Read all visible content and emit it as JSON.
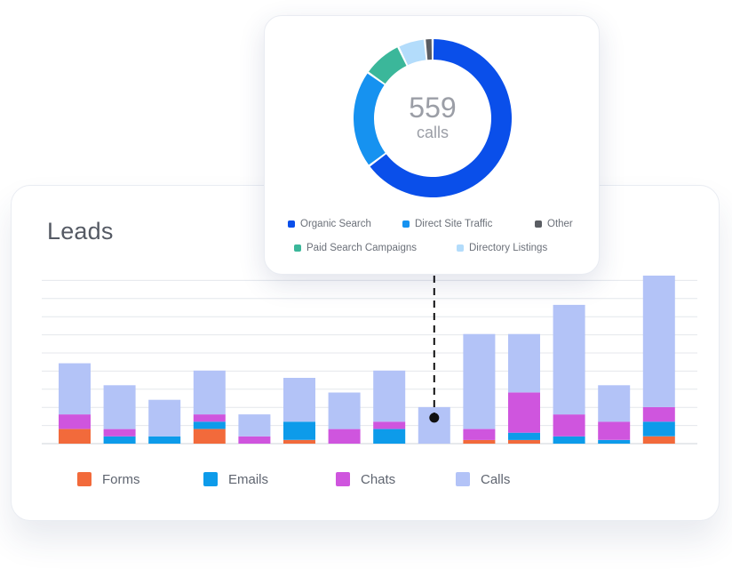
{
  "leads": {
    "title": "Leads",
    "legend": [
      {
        "label": "Forms",
        "color": "#f26a3b"
      },
      {
        "label": "Emails",
        "color": "#0d9bea"
      },
      {
        "label": "Chats",
        "color": "#cf55de"
      },
      {
        "label": "Calls",
        "color": "#b3c3f7"
      }
    ]
  },
  "donut": {
    "value": "559",
    "unit": "calls",
    "legend": [
      {
        "label": "Organic Search",
        "color": "#0a4fea"
      },
      {
        "label": "Direct Site Traffic",
        "color": "#1692f0"
      },
      {
        "label": "Other",
        "color": "#5a5d63"
      },
      {
        "label": "Paid Search Campaigns",
        "color": "#3bb79a"
      },
      {
        "label": "Directory Listings",
        "color": "#b3dcfb"
      }
    ]
  },
  "chart_data": [
    {
      "type": "bar",
      "stacked": true,
      "title": "Leads",
      "categories": [
        "",
        "",
        "",
        "",
        "",
        "",
        "",
        "",
        "",
        "",
        "",
        "",
        "",
        ""
      ],
      "series": [
        {
          "name": "Forms",
          "values": [
            4,
            0,
            0,
            4,
            0,
            1,
            0,
            0,
            0,
            1,
            1,
            0,
            0,
            2
          ]
        },
        {
          "name": "Emails",
          "values": [
            0,
            2,
            2,
            2,
            0,
            5,
            0,
            4,
            0,
            0,
            2,
            2,
            1,
            4
          ]
        },
        {
          "name": "Chats",
          "values": [
            4,
            2,
            0,
            2,
            2,
            0,
            4,
            2,
            0,
            3,
            11,
            6,
            5,
            4
          ]
        },
        {
          "name": "Calls",
          "values": [
            14,
            12,
            10,
            12,
            6,
            12,
            10,
            14,
            10,
            26,
            16,
            30,
            10,
            36
          ]
        }
      ],
      "ylim": [
        0,
        46
      ],
      "grid": true,
      "legend_position": "bottom"
    },
    {
      "type": "pie",
      "donut": true,
      "labels": [
        "Organic Search",
        "Direct Site Traffic",
        "Paid Search Campaigns",
        "Directory Listings",
        "Other"
      ],
      "values": [
        362,
        112,
        45,
        31,
        9
      ],
      "total": 559
    }
  ]
}
